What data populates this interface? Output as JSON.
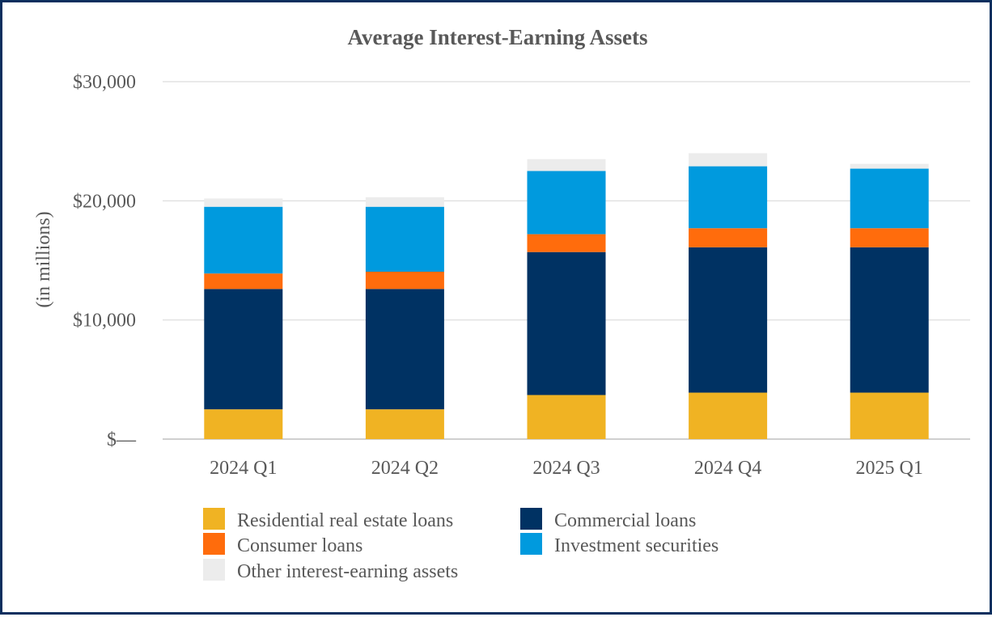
{
  "chart_data": {
    "type": "bar",
    "stacked": true,
    "title": "Average Interest-Earning Assets",
    "xlabel": "",
    "ylabel": "(in millions)",
    "ylim": [
      0,
      30000
    ],
    "yticks": [
      0,
      10000,
      20000,
      30000
    ],
    "ytick_labels": [
      "$—",
      "$10,000",
      "$20,000",
      "$30,000"
    ],
    "grid": true,
    "legend_position": "bottom",
    "categories": [
      "2024 Q1",
      "2024 Q2",
      "2024 Q3",
      "2024 Q4",
      "2025 Q1"
    ],
    "series": [
      {
        "name": "Residential real estate loans",
        "color": "#f0b323",
        "values": [
          2500,
          2500,
          3700,
          3900,
          3900
        ]
      },
      {
        "name": "Commercial loans",
        "color": "#003263",
        "values": [
          10100,
          10100,
          12000,
          12200,
          12200
        ]
      },
      {
        "name": "Consumer loans",
        "color": "#ff6c0c",
        "values": [
          1300,
          1450,
          1500,
          1600,
          1600
        ]
      },
      {
        "name": "Investment securities",
        "color": "#009ade",
        "values": [
          5600,
          5450,
          5300,
          5200,
          5000
        ]
      },
      {
        "name": "Other interest-earning assets",
        "color": "#ececec",
        "values": [
          700,
          800,
          1000,
          1100,
          400
        ]
      }
    ]
  }
}
